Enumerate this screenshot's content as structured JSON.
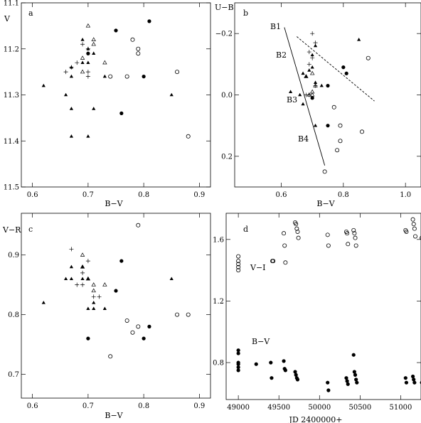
{
  "chart_data": [
    {
      "id": "a",
      "type": "scatter",
      "panel_label": "a",
      "xlabel": "B−V",
      "ylabel": "V",
      "xlim": [
        0.58,
        0.92
      ],
      "ylim": [
        11.5,
        11.1
      ],
      "xticks": [
        0.6,
        0.7,
        0.8,
        0.9
      ],
      "yticks": [
        11.1,
        11.2,
        11.3,
        11.4,
        11.5
      ],
      "series": [
        {
          "marker": "filled-circle",
          "points": [
            [
              0.81,
              11.14
            ],
            [
              0.75,
              11.16
            ],
            [
              0.7,
              11.21
            ],
            [
              0.8,
              11.26
            ],
            [
              0.76,
              11.34
            ]
          ]
        },
        {
          "marker": "open-circle",
          "points": [
            [
              0.78,
              11.18
            ],
            [
              0.79,
              11.2
            ],
            [
              0.79,
              11.21
            ],
            [
              0.74,
              11.26
            ],
            [
              0.77,
              11.26
            ],
            [
              0.86,
              11.25
            ],
            [
              0.88,
              11.39
            ]
          ]
        },
        {
          "marker": "filled-triangle",
          "points": [
            [
              0.69,
              11.18
            ],
            [
              0.7,
              11.2
            ],
            [
              0.71,
              11.21
            ],
            [
              0.69,
              11.23
            ],
            [
              0.7,
              11.23
            ],
            [
              0.67,
              11.24
            ],
            [
              0.67,
              11.26
            ],
            [
              0.73,
              11.26
            ],
            [
              0.62,
              11.28
            ],
            [
              0.66,
              11.3
            ],
            [
              0.85,
              11.3
            ],
            [
              0.67,
              11.33
            ],
            [
              0.71,
              11.33
            ],
            [
              0.67,
              11.39
            ],
            [
              0.7,
              11.39
            ]
          ]
        },
        {
          "marker": "open-triangle",
          "points": [
            [
              0.7,
              11.15
            ],
            [
              0.71,
              11.18
            ],
            [
              0.71,
              11.19
            ],
            [
              0.69,
              11.22
            ],
            [
              0.73,
              11.23
            ],
            [
              0.69,
              11.25
            ]
          ]
        },
        {
          "marker": "plus",
          "points": [
            [
              0.69,
              11.19
            ],
            [
              0.7,
              11.2
            ],
            [
              0.68,
              11.23
            ],
            [
              0.67,
              11.24
            ],
            [
              0.66,
              11.25
            ],
            [
              0.7,
              11.25
            ],
            [
              0.7,
              11.26
            ]
          ]
        }
      ]
    },
    {
      "id": "b",
      "type": "scatter",
      "panel_label": "b",
      "xlabel": "B−V",
      "ylabel": "U−B",
      "xlim": [
        0.45,
        1.05
      ],
      "ylim": [
        0.3,
        -0.3
      ],
      "xticks": [
        0.6,
        0.8,
        1.0
      ],
      "xtick_labels": [
        "0.6",
        "0.8",
        "1.0"
      ],
      "yticks": [
        -0.2,
        0.0,
        0.2
      ],
      "ytick_labels": [
        "−0.2",
        "0.0",
        "0.2"
      ],
      "annotations": [
        "B1",
        "B2",
        "B3",
        "B4"
      ],
      "series": [
        {
          "marker": "filled-circle",
          "points": [
            [
              0.8,
              -0.09
            ],
            [
              0.81,
              -0.07
            ],
            [
              0.75,
              -0.03
            ],
            [
              0.7,
              0.01
            ],
            [
              0.75,
              0.1
            ]
          ]
        },
        {
          "marker": "open-circle",
          "points": [
            [
              0.88,
              -0.12
            ],
            [
              0.77,
              0.04
            ],
            [
              0.79,
              0.1
            ],
            [
              0.86,
              0.12
            ],
            [
              0.79,
              0.15
            ],
            [
              0.78,
              0.18
            ],
            [
              0.74,
              0.25
            ]
          ]
        },
        {
          "marker": "filled-triangle",
          "points": [
            [
              0.85,
              -0.18
            ],
            [
              0.71,
              -0.16
            ],
            [
              0.7,
              -0.13
            ],
            [
              0.7,
              -0.09
            ],
            [
              0.69,
              -0.08
            ],
            [
              0.67,
              -0.07
            ],
            [
              0.68,
              -0.06
            ],
            [
              0.71,
              -0.04
            ],
            [
              0.73,
              -0.03
            ],
            [
              0.63,
              -0.01
            ],
            [
              0.66,
              0.0
            ],
            [
              0.67,
              0.03
            ],
            [
              0.71,
              0.1
            ]
          ]
        },
        {
          "marker": "open-triangle",
          "points": [
            [
              0.68,
              -0.06
            ],
            [
              0.7,
              -0.07
            ],
            [
              0.71,
              -0.03
            ],
            [
              0.7,
              -0.01
            ],
            [
              0.69,
              0.0
            ],
            [
              0.7,
              0.0
            ]
          ]
        },
        {
          "marker": "plus",
          "points": [
            [
              0.7,
              -0.2
            ],
            [
              0.71,
              -0.17
            ],
            [
              0.69,
              -0.14
            ],
            [
              0.7,
              -0.12
            ],
            [
              0.69,
              -0.1
            ],
            [
              0.71,
              -0.03
            ],
            [
              0.68,
              0.0
            ],
            [
              0.69,
              0.0
            ]
          ]
        }
      ],
      "lines": [
        {
          "style": "solid",
          "from": [
            0.61,
            -0.22
          ],
          "to": [
            0.74,
            0.23
          ]
        },
        {
          "style": "dashed",
          "from": [
            0.65,
            -0.19
          ],
          "to": [
            0.9,
            0.02
          ]
        }
      ]
    },
    {
      "id": "c",
      "type": "scatter",
      "panel_label": "c",
      "xlabel": "B−V",
      "ylabel": "V−R",
      "xlim": [
        0.58,
        0.92
      ],
      "ylim": [
        0.66,
        0.97
      ],
      "xticks": [
        0.6,
        0.7,
        0.8,
        0.9
      ],
      "yticks": [
        0.7,
        0.8,
        0.9
      ],
      "series": [
        {
          "marker": "filled-circle",
          "points": [
            [
              0.76,
              0.89
            ],
            [
              0.75,
              0.84
            ],
            [
              0.81,
              0.78
            ],
            [
              0.7,
              0.76
            ],
            [
              0.8,
              0.76
            ]
          ]
        },
        {
          "marker": "open-circle",
          "points": [
            [
              0.79,
              0.95
            ],
            [
              0.77,
              0.79
            ],
            [
              0.79,
              0.78
            ],
            [
              0.78,
              0.77
            ],
            [
              0.86,
              0.8
            ],
            [
              0.88,
              0.8
            ],
            [
              0.74,
              0.73
            ]
          ]
        },
        {
          "marker": "filled-triangle",
          "points": [
            [
              0.67,
              0.88
            ],
            [
              0.69,
              0.88
            ],
            [
              0.66,
              0.86
            ],
            [
              0.67,
              0.86
            ],
            [
              0.69,
              0.86
            ],
            [
              0.7,
              0.86
            ],
            [
              0.85,
              0.86
            ],
            [
              0.62,
              0.82
            ],
            [
              0.71,
              0.82
            ],
            [
              0.7,
              0.81
            ],
            [
              0.71,
              0.81
            ],
            [
              0.73,
              0.81
            ]
          ]
        },
        {
          "marker": "open-triangle",
          "points": [
            [
              0.69,
              0.9
            ],
            [
              0.69,
              0.88
            ],
            [
              0.7,
              0.86
            ],
            [
              0.71,
              0.85
            ],
            [
              0.73,
              0.85
            ],
            [
              0.71,
              0.84
            ]
          ]
        },
        {
          "marker": "plus",
          "points": [
            [
              0.67,
              0.91
            ],
            [
              0.7,
              0.89
            ],
            [
              0.69,
              0.87
            ],
            [
              0.68,
              0.85
            ],
            [
              0.69,
              0.85
            ],
            [
              0.71,
              0.83
            ],
            [
              0.72,
              0.83
            ]
          ]
        }
      ]
    },
    {
      "id": "d",
      "type": "scatter",
      "panel_label": "d",
      "xlabel": "JD 2400000+",
      "ylabel": "",
      "xlim": [
        48850,
        51250
      ],
      "ylim": [
        0.56,
        1.77
      ],
      "xticks": [
        49000,
        49500,
        50000,
        50500,
        51000
      ],
      "yticks": [
        0.8,
        1.2,
        1.6
      ],
      "annotations": [
        "V−I",
        "B−V"
      ],
      "series": [
        {
          "name": "V−I",
          "marker": "open-circle",
          "points": [
            [
              49000,
              1.49
            ],
            [
              49000,
              1.46
            ],
            [
              49000,
              1.44
            ],
            [
              49000,
              1.42
            ],
            [
              49000,
              1.4
            ],
            [
              49420,
              1.46
            ],
            [
              49430,
              1.46
            ],
            [
              49560,
              1.64
            ],
            [
              49570,
              1.56
            ],
            [
              49580,
              1.45
            ],
            [
              49700,
              1.71
            ],
            [
              49710,
              1.7
            ],
            [
              49720,
              1.67
            ],
            [
              49730,
              1.65
            ],
            [
              49740,
              1.61
            ],
            [
              50100,
              1.63
            ],
            [
              50110,
              1.56
            ],
            [
              50330,
              1.65
            ],
            [
              50340,
              1.64
            ],
            [
              50350,
              1.57
            ],
            [
              50420,
              1.66
            ],
            [
              50430,
              1.64
            ],
            [
              50440,
              1.61
            ],
            [
              50450,
              1.56
            ],
            [
              51060,
              1.66
            ],
            [
              51070,
              1.65
            ],
            [
              51150,
              1.73
            ],
            [
              51160,
              1.7
            ],
            [
              51170,
              1.67
            ],
            [
              51180,
              1.62
            ],
            [
              51260,
              1.61
            ]
          ]
        },
        {
          "name": "B−V",
          "marker": "filled-circle",
          "points": [
            [
              49000,
              0.88
            ],
            [
              49000,
              0.86
            ],
            [
              49000,
              0.8
            ],
            [
              49000,
              0.79
            ],
            [
              49000,
              0.77
            ],
            [
              49000,
              0.75
            ],
            [
              49220,
              0.79
            ],
            [
              49400,
              0.8
            ],
            [
              49410,
              0.7
            ],
            [
              49560,
              0.81
            ],
            [
              49570,
              0.76
            ],
            [
              49580,
              0.75
            ],
            [
              49700,
              0.74
            ],
            [
              49710,
              0.72
            ],
            [
              49720,
              0.7
            ],
            [
              49730,
              0.69
            ],
            [
              50100,
              0.67
            ],
            [
              50110,
              0.62
            ],
            [
              50330,
              0.7
            ],
            [
              50340,
              0.68
            ],
            [
              50350,
              0.66
            ],
            [
              50420,
              0.85
            ],
            [
              50430,
              0.74
            ],
            [
              50440,
              0.72
            ],
            [
              50450,
              0.69
            ],
            [
              50460,
              0.67
            ],
            [
              51060,
              0.7
            ],
            [
              51070,
              0.67
            ],
            [
              51150,
              0.71
            ],
            [
              51160,
              0.69
            ],
            [
              51170,
              0.67
            ],
            [
              51260,
              0.67
            ]
          ]
        }
      ]
    }
  ]
}
